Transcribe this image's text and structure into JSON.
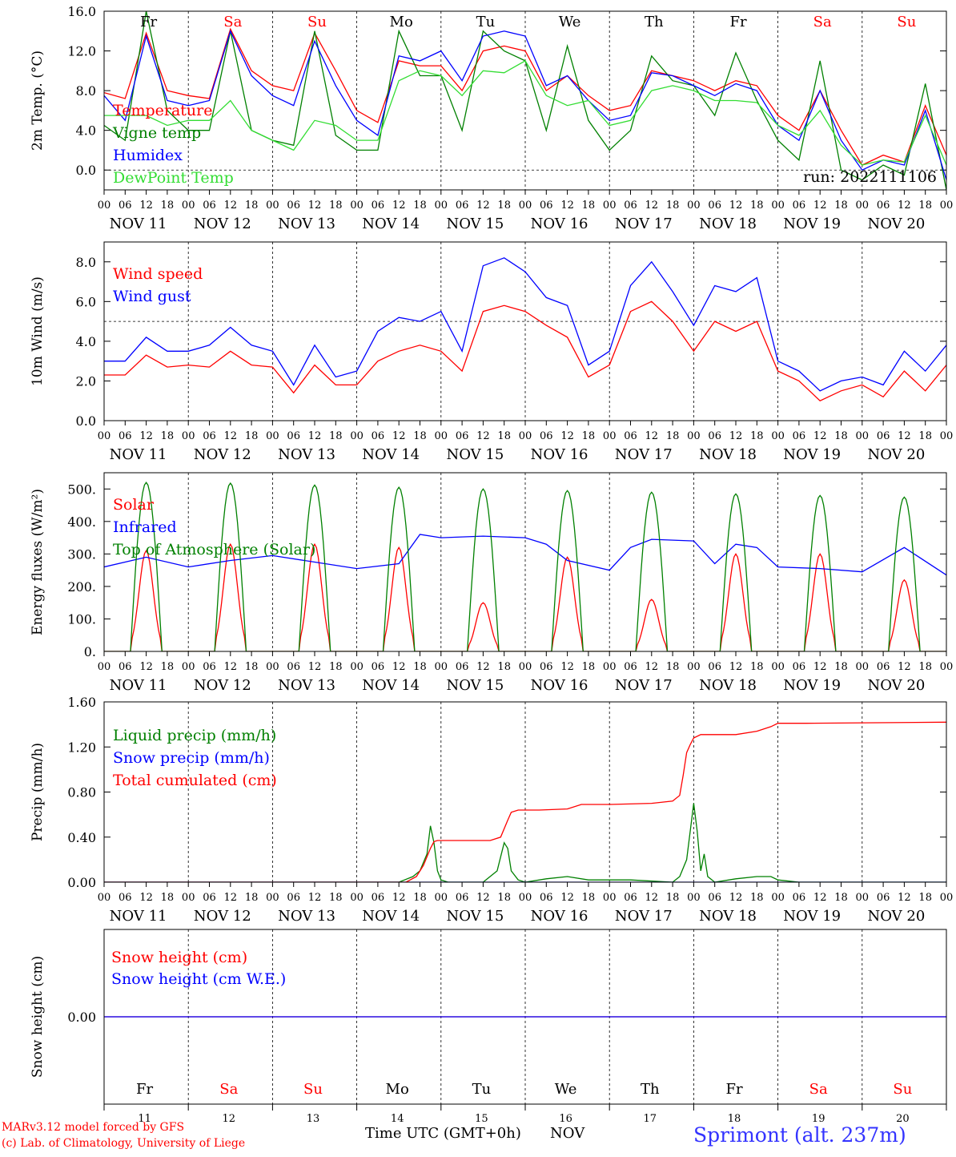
{
  "days": {
    "dates": [
      "NOV 11",
      "NOV 12",
      "NOV 13",
      "NOV 14",
      "NOV 15",
      "NOV 16",
      "NOV 17",
      "NOV 18",
      "NOV 19",
      "NOV 20"
    ],
    "dows": [
      "Fr",
      "Sa",
      "Su",
      "Mo",
      "Tu",
      "We",
      "Th",
      "Fr",
      "Sa",
      "Su"
    ],
    "dow_colors": [
      "#000000",
      "#ff0000",
      "#ff0000",
      "#000000",
      "#000000",
      "#000000",
      "#000000",
      "#000000",
      "#ff0000",
      "#ff0000"
    ],
    "daynums": [
      "11",
      "12",
      "13",
      "14",
      "15",
      "16",
      "17",
      "18",
      "19",
      "20"
    ],
    "hour_labels": [
      "00",
      "06",
      "12",
      "18"
    ],
    "final_hour_label": "00"
  },
  "footer": {
    "model_line": "MARv3.12 model forced by GFS",
    "credit_line": "(c) Lab. of Climatology, University of Liege",
    "xlabel": "Time UTC (GMT+0h)",
    "month": "NOV",
    "station": "Sprimont (alt. 237m)"
  },
  "chart_data": [
    {
      "type": "line",
      "ylabel": "2m Temp. (°C)",
      "ylim": [
        -2,
        16
      ],
      "yticks": [
        "0.0",
        "4.0",
        "8.0",
        "12.0",
        "16.0"
      ],
      "ytick_values": [
        0,
        4,
        8,
        12,
        16
      ],
      "ref_line": 0,
      "run_label": "run: 2022111106",
      "x_unit": "hours since NOV 11 00 UTC",
      "series": [
        {
          "name": "Temperature",
          "color": "#ff0000",
          "x": [
            0,
            6,
            12,
            18,
            24,
            30,
            36,
            42,
            48,
            54,
            60,
            66,
            72,
            78,
            84,
            90,
            96,
            102,
            108,
            114,
            120,
            126,
            132,
            138,
            144,
            150,
            156,
            162,
            168,
            174,
            180,
            186,
            192,
            198,
            204,
            210,
            216,
            222,
            228,
            234,
            240
          ],
          "y": [
            7.8,
            7.2,
            13.8,
            8.0,
            7.5,
            7.2,
            14.2,
            10.0,
            8.5,
            8.0,
            13.8,
            10.0,
            6.0,
            4.8,
            11.0,
            10.5,
            10.5,
            8.0,
            12.0,
            12.5,
            12.0,
            8.0,
            9.5,
            7.5,
            6.0,
            6.5,
            10.0,
            9.5,
            9.0,
            8.0,
            9.0,
            8.5,
            5.5,
            4.0,
            8.0,
            4.0,
            0.5,
            1.5,
            0.8,
            6.5,
            1.5
          ]
        },
        {
          "name": "Vigne temp",
          "color": "#008000",
          "x": [
            0,
            6,
            12,
            18,
            24,
            30,
            36,
            42,
            48,
            54,
            60,
            66,
            72,
            78,
            84,
            90,
            96,
            102,
            108,
            114,
            120,
            126,
            132,
            138,
            144,
            150,
            156,
            162,
            168,
            174,
            180,
            186,
            192,
            198,
            204,
            210,
            216,
            222,
            228,
            234,
            240
          ],
          "y": [
            4.5,
            3.0,
            16.0,
            6.0,
            4.0,
            4.0,
            14.0,
            4.0,
            3.0,
            2.5,
            14.0,
            3.5,
            2.0,
            2.0,
            14.0,
            9.5,
            9.5,
            4.0,
            14.0,
            12.0,
            11.0,
            4.0,
            12.5,
            5.0,
            2.0,
            4.0,
            11.5,
            9.0,
            8.5,
            5.5,
            11.8,
            7.0,
            3.0,
            1.0,
            11.0,
            0.0,
            -1.0,
            0.5,
            -0.5,
            8.7,
            -2.0
          ]
        },
        {
          "name": "Humidex",
          "color": "#0000ff",
          "x": [
            0,
            6,
            12,
            18,
            24,
            30,
            36,
            42,
            48,
            54,
            60,
            66,
            72,
            78,
            84,
            90,
            96,
            102,
            108,
            114,
            120,
            126,
            132,
            138,
            144,
            150,
            156,
            162,
            168,
            174,
            180,
            186,
            192,
            198,
            204,
            210,
            216,
            222,
            228,
            234,
            240
          ],
          "y": [
            7.5,
            5.0,
            13.5,
            7.0,
            6.5,
            7.0,
            14.0,
            9.5,
            7.5,
            6.5,
            13.0,
            8.5,
            5.0,
            3.5,
            11.5,
            11.0,
            12.0,
            9.0,
            13.5,
            14.0,
            13.5,
            8.5,
            9.5,
            7.0,
            5.0,
            5.5,
            9.8,
            9.5,
            8.5,
            7.5,
            8.7,
            8.0,
            4.5,
            3.0,
            8.0,
            3.0,
            0.0,
            1.0,
            0.5,
            6.0,
            -1.0
          ]
        },
        {
          "name": "DewPoint Temp",
          "color": "#33dd33",
          "x": [
            0,
            6,
            12,
            18,
            24,
            30,
            36,
            42,
            48,
            54,
            60,
            66,
            72,
            78,
            84,
            90,
            96,
            102,
            108,
            114,
            120,
            126,
            132,
            138,
            144,
            150,
            156,
            162,
            168,
            174,
            180,
            186,
            192,
            198,
            204,
            210,
            216,
            222,
            228,
            234,
            240
          ],
          "y": [
            5.5,
            5.5,
            5.5,
            4.5,
            5.0,
            5.0,
            7.0,
            4.0,
            3.0,
            2.0,
            5.0,
            4.5,
            3.0,
            3.0,
            9.0,
            10.0,
            9.5,
            7.5,
            10.0,
            9.8,
            11.0,
            7.5,
            6.5,
            7.0,
            4.5,
            5.0,
            8.0,
            8.5,
            8.0,
            7.0,
            7.0,
            6.8,
            4.5,
            3.5,
            6.0,
            2.5,
            0.5,
            1.0,
            0.8,
            5.5,
            0.5
          ]
        }
      ]
    },
    {
      "type": "line",
      "ylabel": "10m Wind (m/s)",
      "ylim": [
        0,
        9
      ],
      "yticks": [
        "0.0",
        "2.0",
        "4.0",
        "6.0",
        "8.0"
      ],
      "ytick_values": [
        0,
        2,
        4,
        6,
        8
      ],
      "ref_line": 5,
      "x_unit": "hours since NOV 11 00 UTC",
      "series": [
        {
          "name": "Wind speed",
          "color": "#ff0000",
          "x": [
            0,
            6,
            12,
            18,
            24,
            30,
            36,
            42,
            48,
            54,
            60,
            66,
            72,
            78,
            84,
            90,
            96,
            102,
            108,
            114,
            120,
            126,
            132,
            138,
            144,
            150,
            156,
            162,
            168,
            174,
            180,
            186,
            192,
            198,
            204,
            210,
            216,
            222,
            228,
            234,
            240
          ],
          "y": [
            2.3,
            2.3,
            3.3,
            2.7,
            2.8,
            2.7,
            3.5,
            2.8,
            2.7,
            1.4,
            2.8,
            1.8,
            1.8,
            3.0,
            3.5,
            3.8,
            3.5,
            2.5,
            5.5,
            5.8,
            5.5,
            4.8,
            4.2,
            2.2,
            2.8,
            5.5,
            6.0,
            5.0,
            3.5,
            5.0,
            4.5,
            5.0,
            2.5,
            2.0,
            1.0,
            1.5,
            1.8,
            1.2,
            2.5,
            1.5,
            2.8
          ]
        },
        {
          "name": "Wind gust",
          "color": "#0000ff",
          "x": [
            0,
            6,
            12,
            18,
            24,
            30,
            36,
            42,
            48,
            54,
            60,
            66,
            72,
            78,
            84,
            90,
            96,
            102,
            108,
            114,
            120,
            126,
            132,
            138,
            144,
            150,
            156,
            162,
            168,
            174,
            180,
            186,
            192,
            198,
            204,
            210,
            216,
            222,
            228,
            234,
            240
          ],
          "y": [
            3.0,
            3.0,
            4.2,
            3.5,
            3.5,
            3.8,
            4.7,
            3.8,
            3.5,
            1.8,
            3.8,
            2.2,
            2.5,
            4.5,
            5.2,
            5.0,
            5.5,
            3.5,
            7.8,
            8.2,
            7.5,
            6.2,
            5.8,
            2.8,
            3.5,
            6.8,
            8.0,
            6.5,
            4.8,
            6.8,
            6.5,
            7.2,
            3.0,
            2.5,
            1.5,
            2.0,
            2.2,
            1.8,
            3.5,
            2.5,
            3.8
          ]
        }
      ]
    },
    {
      "type": "line",
      "ylabel": "Energy fluxes (W/m²)",
      "ylim": [
        0,
        550
      ],
      "yticks": [
        "0.",
        "100.",
        "200.",
        "300.",
        "400.",
        "500."
      ],
      "ytick_values": [
        0,
        100,
        200,
        300,
        400,
        500
      ],
      "x_unit": "hours since NOV 11 00 UTC",
      "series": [
        {
          "name": "Solar",
          "color": "#ff0000",
          "noon_peaks": [
            310,
            330,
            330,
            320,
            150,
            290,
            160,
            300,
            300,
            220
          ]
        },
        {
          "name": "Infrared",
          "color": "#0000ff",
          "x": [
            0,
            12,
            24,
            36,
            48,
            60,
            72,
            84,
            90,
            96,
            108,
            120,
            126,
            132,
            144,
            150,
            156,
            168,
            174,
            180,
            186,
            192,
            204,
            216,
            228,
            240
          ],
          "y": [
            260,
            290,
            260,
            280,
            295,
            275,
            255,
            270,
            360,
            350,
            355,
            350,
            330,
            280,
            250,
            320,
            345,
            340,
            270,
            330,
            320,
            260,
            255,
            245,
            320,
            235
          ]
        },
        {
          "name": "Top of Atmosphere (Solar)",
          "color": "#008000",
          "noon_peaks": [
            520,
            518,
            512,
            505,
            500,
            495,
            490,
            485,
            480,
            475
          ]
        }
      ]
    },
    {
      "type": "line",
      "ylabel": "Precip (mm/h)",
      "ylim": [
        0,
        1.6
      ],
      "yticks": [
        "0.00",
        "0.40",
        "0.80",
        "1.20",
        "1.60"
      ],
      "ytick_values": [
        0,
        0.4,
        0.8,
        1.2,
        1.6
      ],
      "x_unit": "hours since NOV 11 00 UTC",
      "series": [
        {
          "name": "Liquid precip (mm/h)",
          "color": "#008000",
          "x": [
            0,
            84,
            88,
            90,
            92,
            93,
            94,
            95,
            96,
            98,
            100,
            108,
            112,
            114,
            115,
            116,
            118,
            120,
            126,
            132,
            138,
            144,
            150,
            162,
            164,
            166,
            168,
            169,
            170,
            171,
            172,
            174,
            180,
            186,
            190,
            192,
            198,
            240
          ],
          "y": [
            0,
            0,
            0.05,
            0.1,
            0.25,
            0.5,
            0.35,
            0.1,
            0.02,
            0,
            0,
            0,
            0.1,
            0.35,
            0.3,
            0.1,
            0.02,
            0,
            0.03,
            0.05,
            0.02,
            0.02,
            0.02,
            0,
            0.05,
            0.2,
            0.7,
            0.45,
            0.1,
            0.25,
            0.05,
            0,
            0.03,
            0.05,
            0.05,
            0.02,
            0,
            0
          ]
        },
        {
          "name": "Snow precip (mm/h)",
          "color": "#0000ff",
          "x": [
            0,
            240
          ],
          "y": [
            0,
            0
          ]
        },
        {
          "name": "Total cumulated (cm)",
          "color": "#ff0000",
          "x": [
            0,
            86,
            89,
            91,
            93,
            94,
            95,
            96,
            100,
            110,
            113,
            115,
            116,
            118,
            120,
            124,
            132,
            136,
            144,
            156,
            162,
            164,
            165,
            166,
            167,
            168,
            170,
            180,
            186,
            190,
            192,
            200,
            240
          ],
          "y": [
            0,
            0,
            0.05,
            0.15,
            0.3,
            0.36,
            0.37,
            0.37,
            0.37,
            0.37,
            0.4,
            0.55,
            0.62,
            0.64,
            0.64,
            0.64,
            0.65,
            0.69,
            0.69,
            0.7,
            0.72,
            0.77,
            0.95,
            1.15,
            1.22,
            1.28,
            1.31,
            1.31,
            1.34,
            1.38,
            1.41,
            1.41,
            1.42
          ]
        }
      ]
    },
    {
      "type": "line",
      "ylabel": "Snow height (cm)",
      "ylim": [
        -1,
        1
      ],
      "yticks": [
        "0.00"
      ],
      "ytick_values": [
        0
      ],
      "x_unit": "hours since NOV 11 00 UTC",
      "series": [
        {
          "name": "Snow height (cm)",
          "color": "#ff0000",
          "x": [
            0,
            240
          ],
          "y": [
            0,
            0
          ]
        },
        {
          "name": "Snow height (cm W.E.)",
          "color": "#0000ff",
          "x": [
            0,
            240
          ],
          "y": [
            0,
            0
          ]
        }
      ]
    }
  ]
}
